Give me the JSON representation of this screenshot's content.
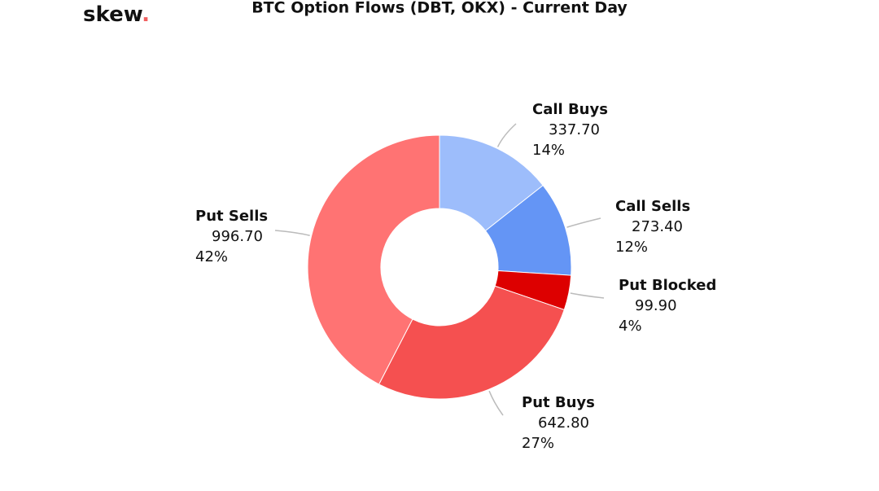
{
  "logo": {
    "text": "skew",
    "dot": "."
  },
  "chart_data": {
    "type": "donut",
    "title": "BTC Option Flows (DBT, OKX) - Current Day",
    "categories": [
      "Call Buys",
      "Call Sells",
      "Put Blocked",
      "Put Buys",
      "Put Sells"
    ],
    "values": [
      337.7,
      273.4,
      99.9,
      642.8,
      996.7
    ],
    "value_labels": [
      "337.70",
      "273.40",
      "99.90",
      "642.80",
      "996.70"
    ],
    "percent_labels": [
      "14%",
      "12%",
      "4%",
      "27%",
      "42%"
    ],
    "colors": [
      "#9dbdfb",
      "#6495f5",
      "#dd0000",
      "#f55050",
      "#ff7373"
    ]
  }
}
